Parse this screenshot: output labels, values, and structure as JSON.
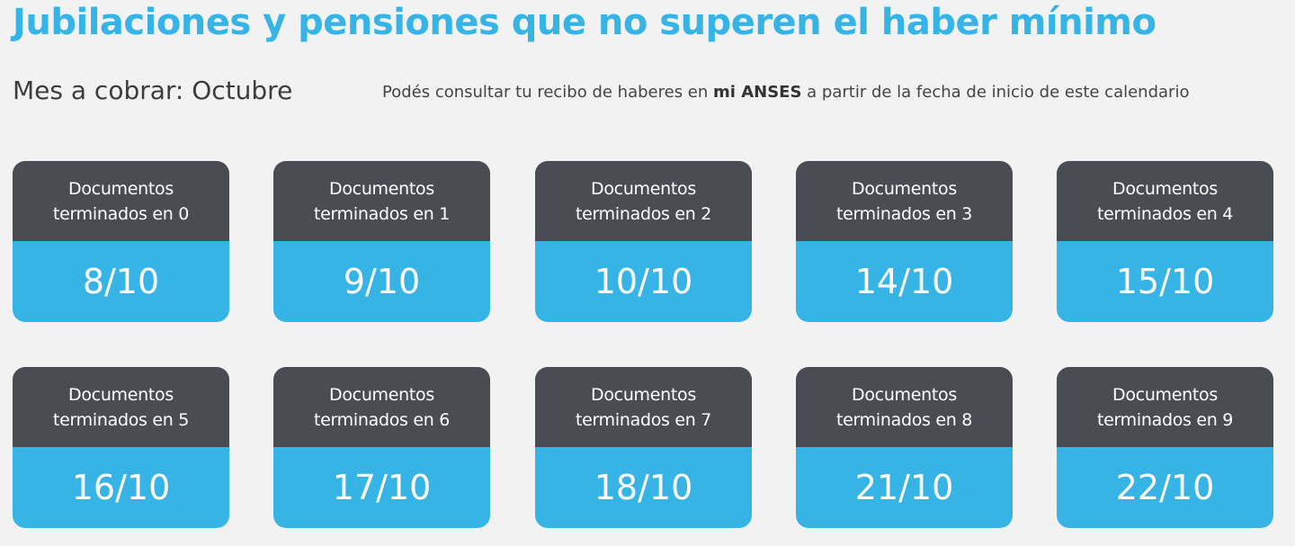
{
  "title": "Jubilaciones y pensiones que no superen el haber mínimo",
  "month_label": "Mes a cobrar: Octubre",
  "note": {
    "before": "Podés consultar tu recibo de haberes en ",
    "bold": "mi ANSES",
    "after": " a partir de la fecha de inicio de este calendario"
  },
  "colors": {
    "accent": "#37b4e6",
    "header": "#4a4c54",
    "background": "#f2f2f2"
  },
  "cards": [
    {
      "line1": "Documentos",
      "line2": "terminados en 0",
      "date": "8/10"
    },
    {
      "line1": "Documentos",
      "line2": "terminados en 1",
      "date": "9/10"
    },
    {
      "line1": "Documentos",
      "line2": "terminados en 2",
      "date": "10/10"
    },
    {
      "line1": "Documentos",
      "line2": "terminados en 3",
      "date": "14/10"
    },
    {
      "line1": "Documentos",
      "line2": "terminados en 4",
      "date": "15/10"
    },
    {
      "line1": "Documentos",
      "line2": "terminados en 5",
      "date": "16/10"
    },
    {
      "line1": "Documentos",
      "line2": "terminados en 6",
      "date": "17/10"
    },
    {
      "line1": "Documentos",
      "line2": "terminados en 7",
      "date": "18/10"
    },
    {
      "line1": "Documentos",
      "line2": "terminados en 8",
      "date": "21/10"
    },
    {
      "line1": "Documentos",
      "line2": "terminados en 9",
      "date": "22/10"
    }
  ]
}
